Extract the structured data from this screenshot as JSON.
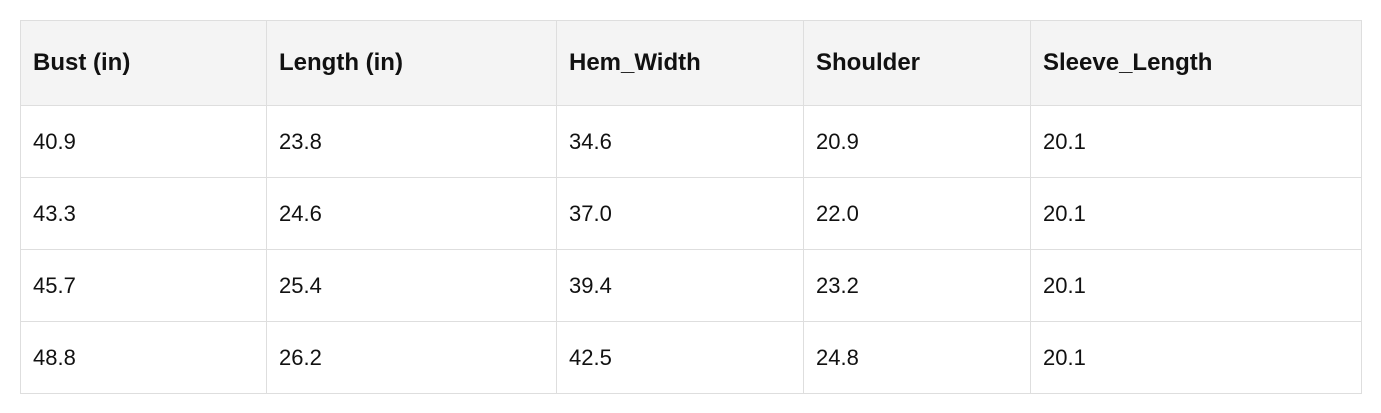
{
  "table": {
    "header": [
      "Bust (in)",
      "Length (in)",
      "Hem_Width",
      "Shoulder",
      "Sleeve_Length"
    ],
    "rows": [
      [
        "40.9",
        "23.8",
        "34.6",
        "20.9",
        "20.1"
      ],
      [
        "43.3",
        "24.6",
        "37.0",
        "22.0",
        "20.1"
      ],
      [
        "45.7",
        "25.4",
        "39.4",
        "23.2",
        "20.1"
      ],
      [
        "48.8",
        "26.2",
        "42.5",
        "24.8",
        "20.1"
      ]
    ]
  }
}
